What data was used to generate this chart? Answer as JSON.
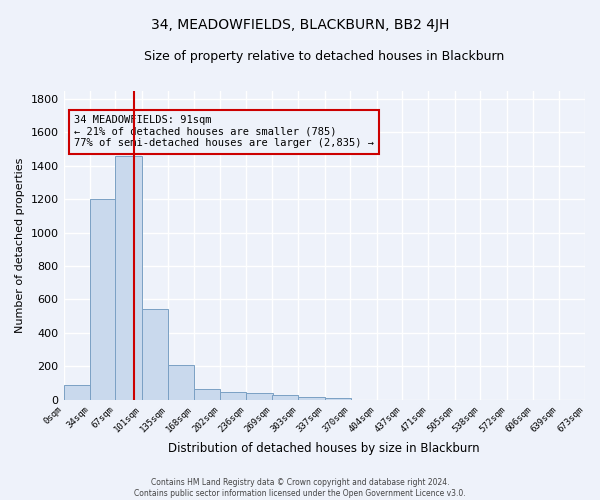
{
  "title": "34, MEADOWFIELDS, BLACKBURN, BB2 4JH",
  "subtitle": "Size of property relative to detached houses in Blackburn",
  "xlabel": "Distribution of detached houses by size in Blackburn",
  "ylabel": "Number of detached properties",
  "bar_values": [
    90,
    1200,
    1460,
    540,
    205,
    65,
    47,
    38,
    28,
    15,
    10,
    0,
    0,
    0,
    0,
    0,
    0,
    0,
    0
  ],
  "bin_edges": [
    0,
    34,
    67,
    101,
    135,
    168,
    202,
    236,
    269,
    303,
    337,
    370,
    404,
    437,
    471,
    505,
    538,
    572,
    606,
    639
  ],
  "tick_labels": [
    "0sqm",
    "34sqm",
    "67sqm",
    "101sqm",
    "135sqm",
    "168sqm",
    "202sqm",
    "236sqm",
    "269sqm",
    "303sqm",
    "337sqm",
    "370sqm",
    "404sqm",
    "437sqm",
    "471sqm",
    "505sqm",
    "538sqm",
    "572sqm",
    "606sqm",
    "639sqm",
    "673sqm"
  ],
  "bar_color": "#c9d9ed",
  "bar_edge_color": "#7aa0c4",
  "vline_x": 91,
  "vline_color": "#cc0000",
  "ylim": [
    0,
    1850
  ],
  "yticks": [
    0,
    200,
    400,
    600,
    800,
    1000,
    1200,
    1400,
    1600,
    1800
  ],
  "annotation_text": "34 MEADOWFIELDS: 91sqm\n← 21% of detached houses are smaller (785)\n77% of semi-detached houses are larger (2,835) →",
  "annotation_box_color": "#cc0000",
  "footer_line1": "Contains HM Land Registry data © Crown copyright and database right 2024.",
  "footer_line2": "Contains public sector information licensed under the Open Government Licence v3.0.",
  "background_color": "#eef2fa",
  "grid_color": "#ffffff"
}
